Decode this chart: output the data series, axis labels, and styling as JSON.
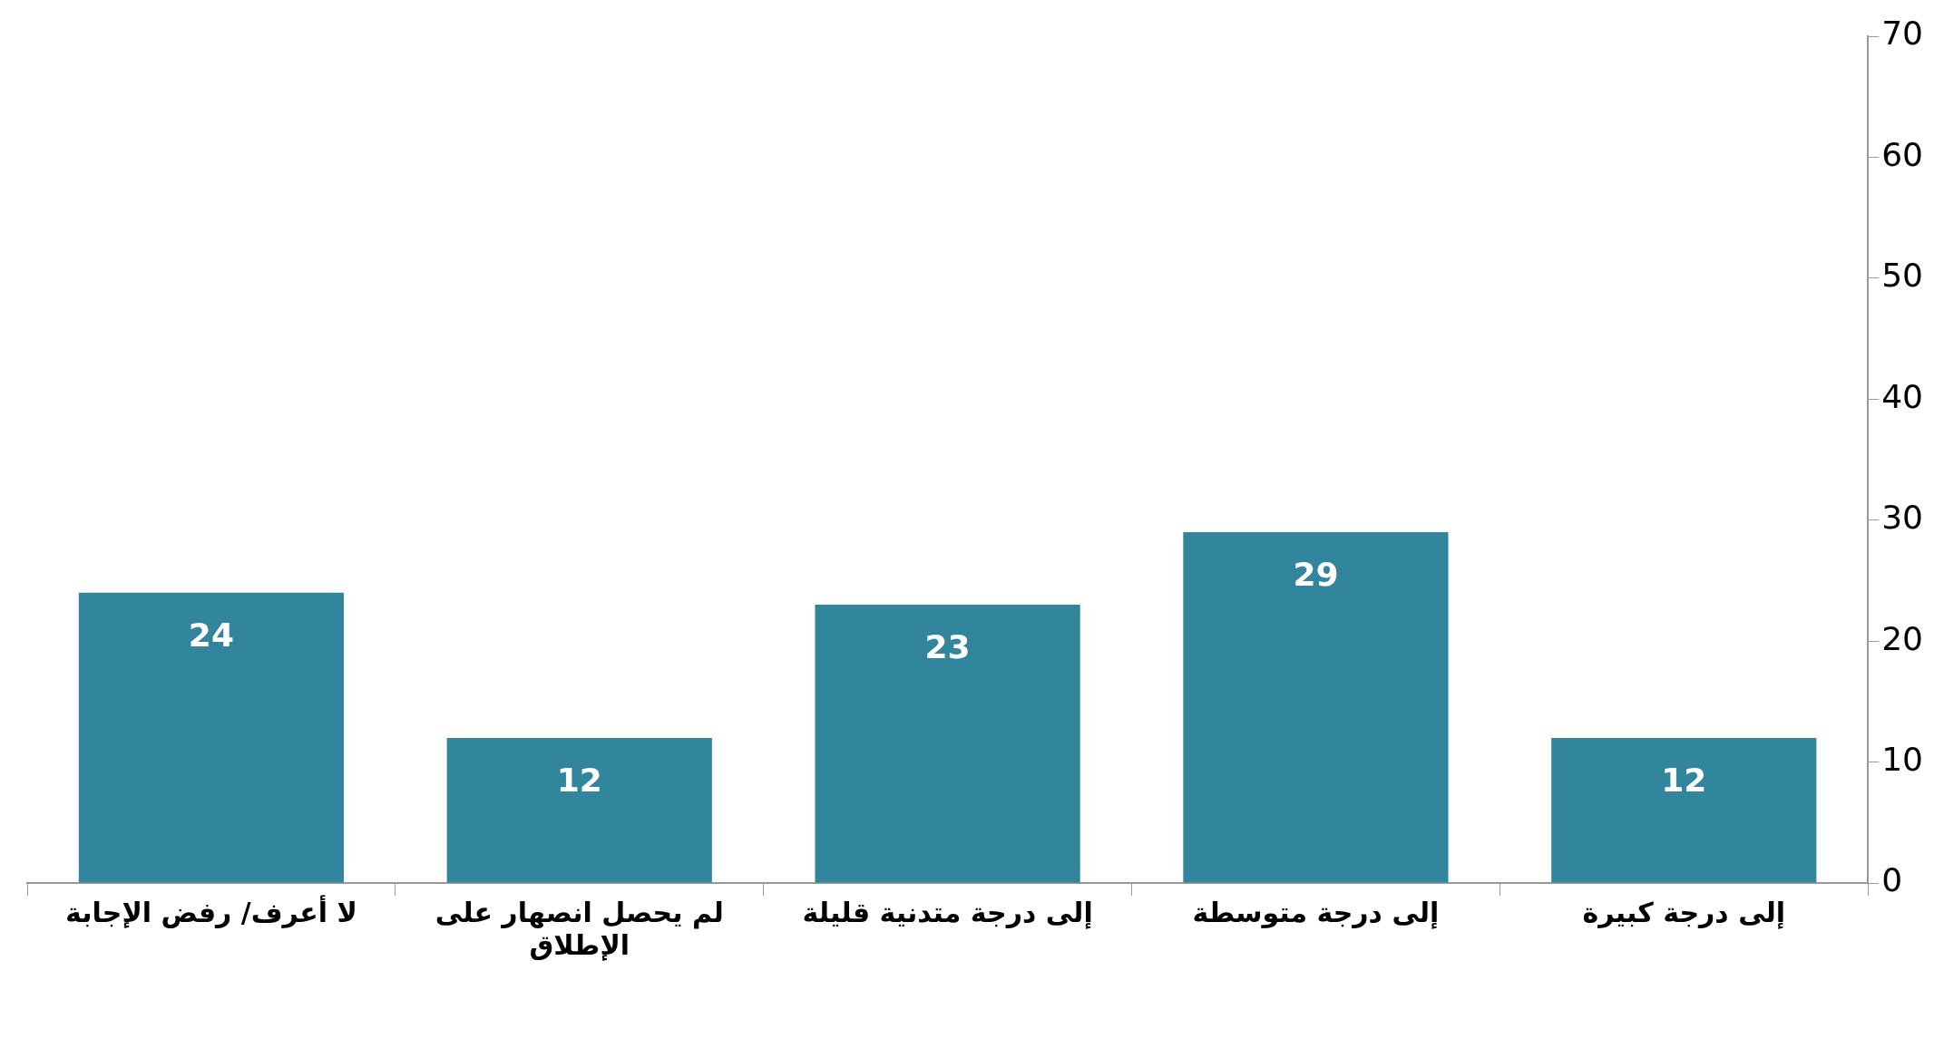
{
  "chart_data": {
    "type": "bar",
    "categories": [
      "لا أعرف/ رفض الإجابة",
      "لم يحصل انصهار على الإطلاق",
      "إلى درجة متدنية قليلة",
      "إلى درجة متوسطة",
      "إلى درجة كبيرة"
    ],
    "values": [
      24,
      12,
      23,
      29,
      12
    ],
    "color": "#31859c",
    "ylim": [
      0,
      70
    ],
    "yticks": [
      0,
      10,
      20,
      30,
      40,
      50,
      60,
      70
    ],
    "grid": false,
    "data_labels": true,
    "legend": false
  }
}
